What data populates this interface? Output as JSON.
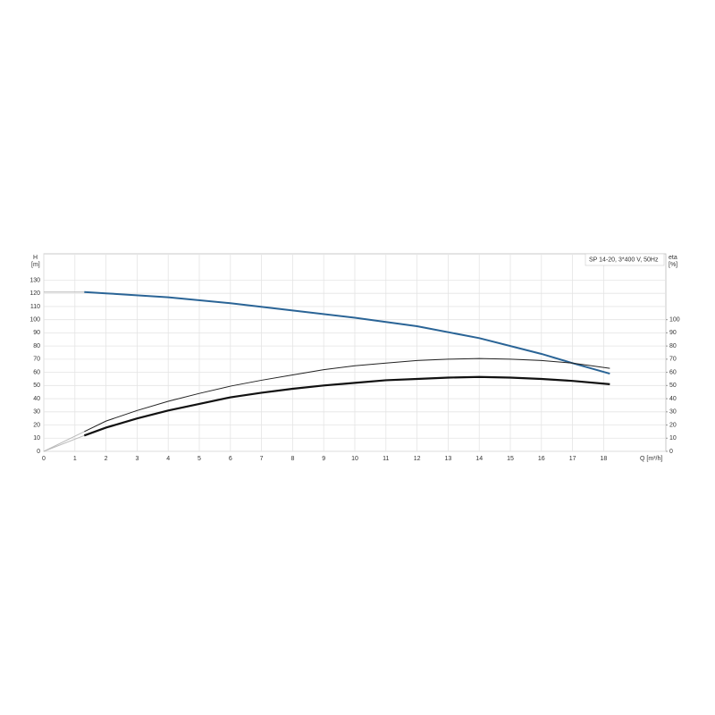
{
  "chart_data": {
    "type": "line",
    "legend": "SP 14-20, 3*400 V, 50Hz",
    "ylabel": "H",
    "yunit": "[m]",
    "y2label": "eta",
    "y2unit": "[%]",
    "xlabel": "Q [m³/h]",
    "xlim": [
      0,
      20
    ],
    "xticks": [
      0,
      1,
      2,
      3,
      4,
      5,
      6,
      7,
      8,
      9,
      10,
      11,
      12,
      13,
      14,
      15,
      16,
      17,
      18
    ],
    "ylim": [
      0,
      150
    ],
    "yticks": [
      0,
      10,
      20,
      30,
      40,
      50,
      60,
      70,
      80,
      90,
      100,
      110,
      120,
      130
    ],
    "y2lim": [
      0,
      150
    ],
    "y2ticks": [
      0,
      10,
      20,
      30,
      40,
      50,
      60,
      70,
      80,
      90,
      100
    ],
    "grid": true,
    "series": [
      {
        "color": "#2a6496",
        "width": 2,
        "x": [
          1.3,
          2,
          4,
          6,
          8,
          10,
          12,
          14,
          16,
          17,
          18.2
        ],
        "values": [
          121,
          120,
          117,
          112.5,
          107,
          101.5,
          95,
          86,
          74,
          67,
          59
        ]
      },
      {
        "color": "#bbbbbb",
        "width": 1,
        "x": [
          0,
          1.3
        ],
        "values": [
          121,
          121
        ]
      },
      {
        "color": "#222222",
        "width": 1,
        "axis": "y2",
        "x": [
          1.3,
          2,
          3,
          4,
          5,
          6,
          7,
          8,
          9,
          10,
          11,
          12,
          13,
          14,
          15,
          16,
          17,
          18.2
        ],
        "values": [
          15,
          23,
          31,
          38,
          44,
          49.5,
          54,
          58,
          62,
          65,
          67,
          69,
          70,
          70.5,
          70,
          69,
          67,
          63
        ]
      },
      {
        "color": "#111111",
        "width": 2.2,
        "axis": "y2",
        "x": [
          1.3,
          2,
          3,
          4,
          5,
          6,
          7,
          8,
          9,
          10,
          11,
          12,
          13,
          14,
          15,
          16,
          17,
          18.2
        ],
        "values": [
          12,
          18,
          25,
          31,
          36,
          41,
          44.5,
          47.5,
          50,
          52,
          54,
          55,
          56,
          56.5,
          56,
          55,
          53.5,
          51
        ]
      },
      {
        "color": "#bbbbbb",
        "width": 1,
        "axis": "y2",
        "x": [
          0,
          1.3
        ],
        "values": [
          0,
          15
        ]
      },
      {
        "color": "#bbbbbb",
        "width": 1,
        "axis": "y2",
        "x": [
          0,
          1.3
        ],
        "values": [
          0,
          12
        ]
      }
    ]
  }
}
